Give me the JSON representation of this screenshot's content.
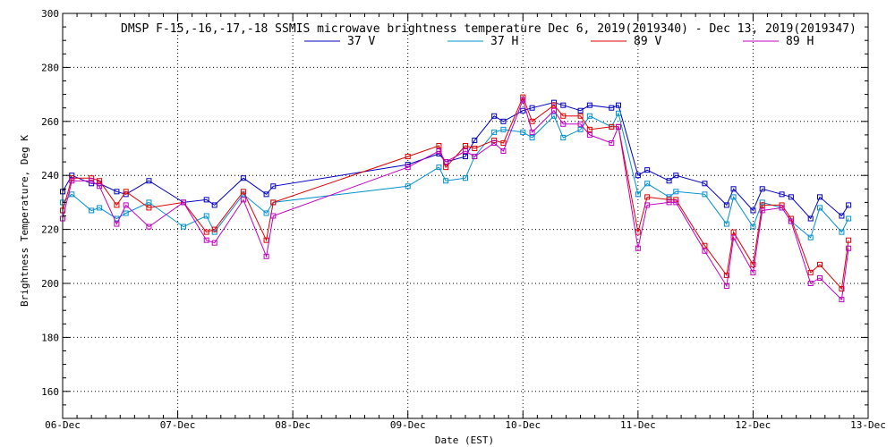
{
  "chart_data": {
    "type": "line",
    "title": "DMSP F-15,-16,-17,-18 SSMIS microwave brightness temperature Dec  6, 2019(2019340) - Dec 13, 2019(2019347)",
    "xlabel": "Date (EST)",
    "ylabel": "Brightness Temperature, Deg K",
    "x_ticks": [
      "06-Dec",
      "07-Dec",
      "08-Dec",
      "09-Dec",
      "10-Dec",
      "11-Dec",
      "12-Dec",
      "13-Dec"
    ],
    "y_ticks": [
      160,
      180,
      200,
      220,
      240,
      260,
      280,
      300
    ],
    "xlim": [
      0,
      7
    ],
    "ylim": [
      150,
      300
    ],
    "grid": true,
    "legend_position": "top",
    "series": [
      {
        "name": "37 V",
        "color": "#0000c0",
        "points": [
          [
            0.0,
            234
          ],
          [
            0.08,
            240
          ],
          [
            0.25,
            237
          ],
          [
            0.32,
            237
          ],
          [
            0.47,
            234
          ],
          [
            0.55,
            233
          ],
          [
            0.75,
            238
          ],
          [
            1.05,
            230
          ],
          [
            1.25,
            231
          ],
          [
            1.32,
            229
          ],
          [
            1.57,
            239
          ],
          [
            1.77,
            233
          ],
          [
            1.83,
            236
          ],
          [
            3.0,
            244
          ],
          [
            3.27,
            248
          ],
          [
            3.33,
            245
          ],
          [
            3.5,
            247
          ],
          [
            3.58,
            253
          ],
          [
            3.75,
            262
          ],
          [
            3.83,
            260
          ],
          [
            4.0,
            264
          ],
          [
            4.08,
            265
          ],
          [
            4.27,
            267
          ],
          [
            4.35,
            266
          ],
          [
            4.5,
            264
          ],
          [
            4.58,
            266
          ],
          [
            4.77,
            265
          ],
          [
            4.83,
            266
          ],
          [
            5.0,
            240
          ],
          [
            5.08,
            242
          ],
          [
            5.27,
            238
          ],
          [
            5.33,
            240
          ],
          [
            5.58,
            237
          ],
          [
            5.77,
            229
          ],
          [
            5.83,
            235
          ],
          [
            6.0,
            227
          ],
          [
            6.08,
            235
          ],
          [
            6.25,
            233
          ],
          [
            6.33,
            232
          ],
          [
            6.5,
            224
          ],
          [
            6.58,
            232
          ],
          [
            6.77,
            225
          ],
          [
            6.83,
            229
          ]
        ]
      },
      {
        "name": "37 H",
        "color": "#0090d0",
        "points": [
          [
            0.0,
            230
          ],
          [
            0.08,
            233
          ],
          [
            0.25,
            227
          ],
          [
            0.32,
            228
          ],
          [
            0.47,
            224
          ],
          [
            0.55,
            226
          ],
          [
            0.75,
            230
          ],
          [
            1.05,
            221
          ],
          [
            1.25,
            225
          ],
          [
            1.32,
            219
          ],
          [
            1.57,
            233
          ],
          [
            1.77,
            226
          ],
          [
            1.83,
            230
          ],
          [
            3.0,
            236
          ],
          [
            3.27,
            243
          ],
          [
            3.33,
            238
          ],
          [
            3.5,
            239
          ],
          [
            3.58,
            247
          ],
          [
            3.75,
            256
          ],
          [
            3.83,
            257
          ],
          [
            4.0,
            256
          ],
          [
            4.08,
            254
          ],
          [
            4.27,
            262
          ],
          [
            4.35,
            254
          ],
          [
            4.5,
            257
          ],
          [
            4.58,
            262
          ],
          [
            4.77,
            258
          ],
          [
            4.83,
            263
          ],
          [
            5.0,
            233
          ],
          [
            5.08,
            237
          ],
          [
            5.27,
            232
          ],
          [
            5.33,
            234
          ],
          [
            5.58,
            233
          ],
          [
            5.77,
            222
          ],
          [
            5.83,
            232
          ],
          [
            6.0,
            221
          ],
          [
            6.08,
            230
          ],
          [
            6.25,
            228
          ],
          [
            6.33,
            223
          ],
          [
            6.5,
            217
          ],
          [
            6.58,
            228
          ],
          [
            6.77,
            219
          ],
          [
            6.83,
            224
          ]
        ]
      },
      {
        "name": "89 V",
        "color": "#e00000",
        "points": [
          [
            0.0,
            227
          ],
          [
            0.08,
            239
          ],
          [
            0.25,
            239
          ],
          [
            0.32,
            238
          ],
          [
            0.47,
            229
          ],
          [
            0.55,
            234
          ],
          [
            0.75,
            228
          ],
          [
            1.05,
            230
          ],
          [
            1.25,
            219
          ],
          [
            1.32,
            220
          ],
          [
            1.57,
            234
          ],
          [
            1.77,
            216
          ],
          [
            1.83,
            230
          ],
          [
            3.0,
            247
          ],
          [
            3.27,
            251
          ],
          [
            3.33,
            243
          ],
          [
            3.5,
            251
          ],
          [
            3.58,
            250
          ],
          [
            3.75,
            253
          ],
          [
            3.83,
            252
          ],
          [
            4.0,
            269
          ],
          [
            4.08,
            260
          ],
          [
            4.27,
            266
          ],
          [
            4.35,
            262
          ],
          [
            4.5,
            262
          ],
          [
            4.58,
            257
          ],
          [
            4.77,
            258
          ],
          [
            4.83,
            258
          ],
          [
            5.0,
            219
          ],
          [
            5.08,
            232
          ],
          [
            5.27,
            231
          ],
          [
            5.33,
            231
          ],
          [
            5.58,
            214
          ],
          [
            5.77,
            203
          ],
          [
            5.83,
            219
          ],
          [
            6.0,
            207
          ],
          [
            6.08,
            229
          ],
          [
            6.25,
            229
          ],
          [
            6.33,
            224
          ],
          [
            6.5,
            204
          ],
          [
            6.58,
            207
          ],
          [
            6.77,
            198
          ],
          [
            6.83,
            216
          ]
        ]
      },
      {
        "name": "89 H",
        "color": "#c000c0",
        "points": [
          [
            0.0,
            224
          ],
          [
            0.08,
            238
          ],
          [
            0.25,
            238
          ],
          [
            0.32,
            236
          ],
          [
            0.47,
            222
          ],
          [
            0.55,
            229
          ],
          [
            0.75,
            221
          ],
          [
            1.05,
            230
          ],
          [
            1.25,
            216
          ],
          [
            1.32,
            215
          ],
          [
            1.57,
            231
          ],
          [
            1.77,
            210
          ],
          [
            1.83,
            225
          ],
          [
            3.0,
            243
          ],
          [
            3.27,
            249
          ],
          [
            3.33,
            245
          ],
          [
            3.5,
            249
          ],
          [
            3.58,
            247
          ],
          [
            3.75,
            252
          ],
          [
            3.83,
            249
          ],
          [
            4.0,
            268
          ],
          [
            4.08,
            256
          ],
          [
            4.27,
            264
          ],
          [
            4.35,
            259
          ],
          [
            4.5,
            259
          ],
          [
            4.58,
            255
          ],
          [
            4.77,
            252
          ],
          [
            4.83,
            258
          ],
          [
            5.0,
            213
          ],
          [
            5.08,
            229
          ],
          [
            5.27,
            230
          ],
          [
            5.33,
            230
          ],
          [
            5.58,
            212
          ],
          [
            5.77,
            199
          ],
          [
            5.83,
            217
          ],
          [
            6.0,
            204
          ],
          [
            6.08,
            227
          ],
          [
            6.25,
            228
          ],
          [
            6.33,
            223
          ],
          [
            6.5,
            200
          ],
          [
            6.58,
            202
          ],
          [
            6.77,
            194
          ],
          [
            6.83,
            213
          ]
        ]
      }
    ]
  }
}
